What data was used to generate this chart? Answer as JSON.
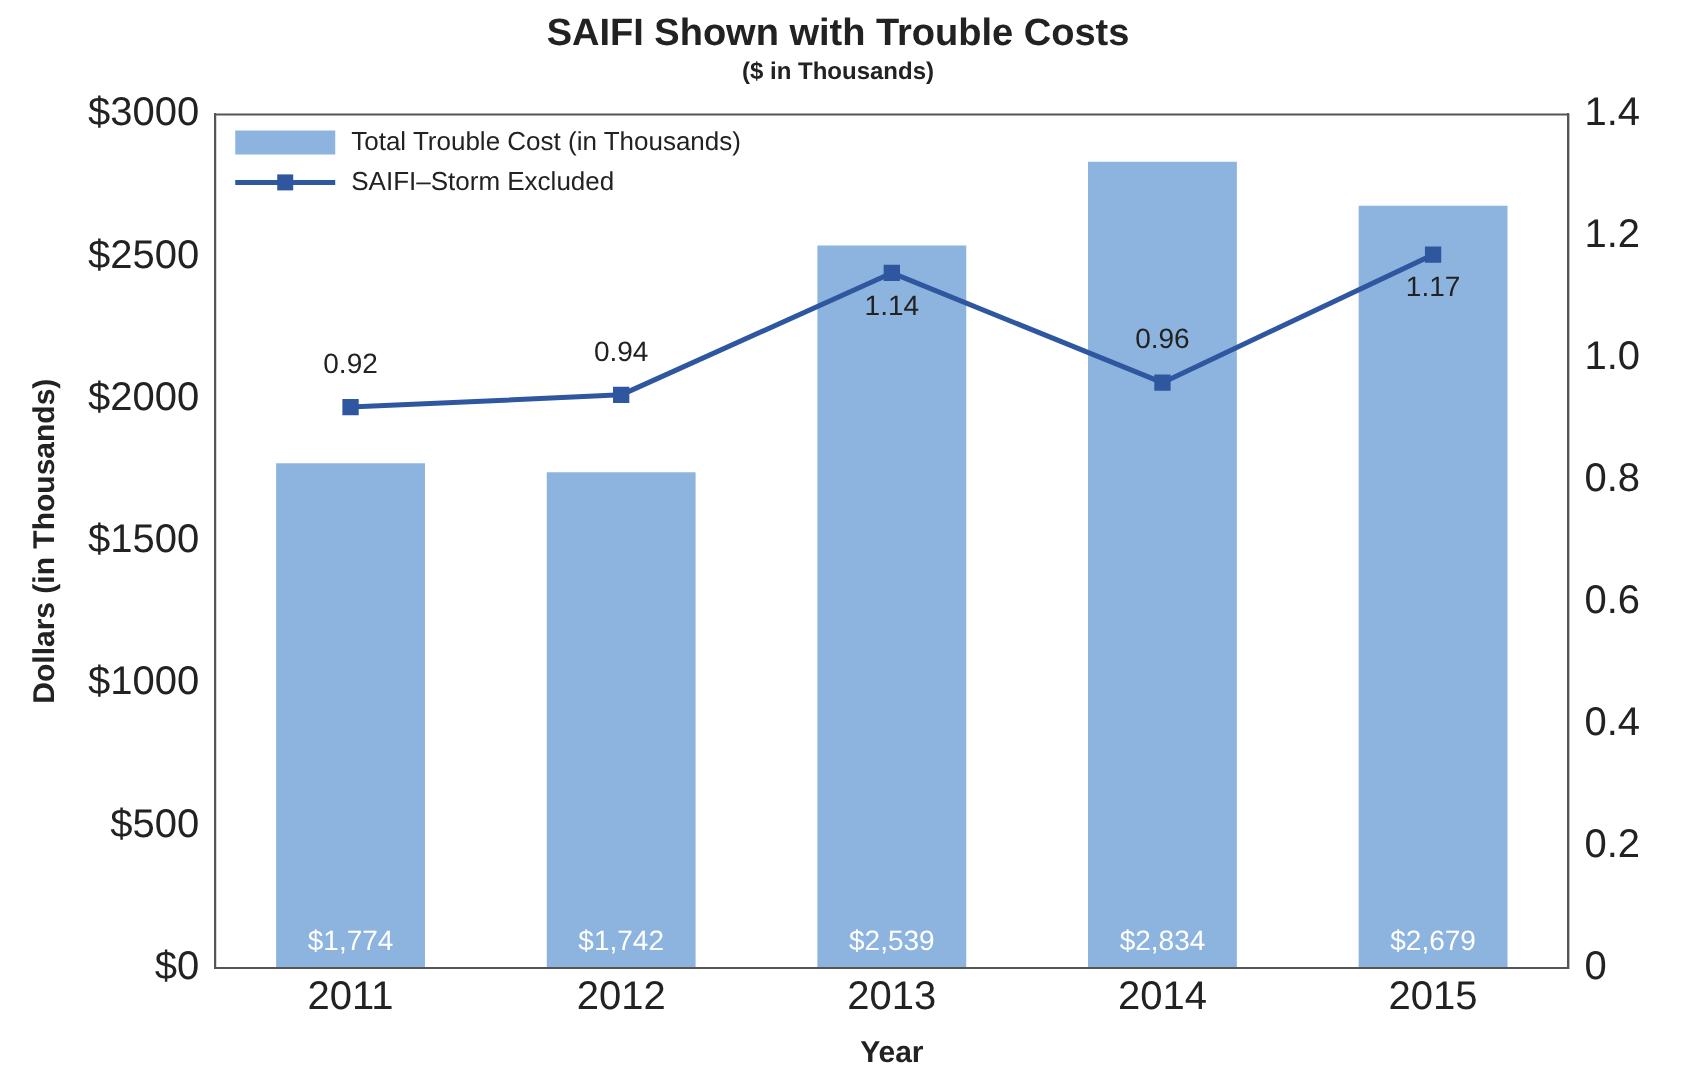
{
  "chart_data": {
    "type": "bar",
    "title": "SAIFI Shown with Trouble Costs",
    "subtitle": "($ in Thousands)",
    "xlabel": "Year",
    "ylabel": "Dollars (in Thousands)",
    "categories": [
      "2011",
      "2012",
      "2013",
      "2014",
      "2015"
    ],
    "series": [
      {
        "name": "Total Trouble Cost (in Thousands)",
        "color": "#8db4de",
        "values": [
          1774,
          1742,
          2539,
          2834,
          2679
        ],
        "value_labels": [
          "$1,774",
          "$1,742",
          "$2,539",
          "$2,834",
          "$2,679"
        ]
      },
      {
        "name": "SAIFI–Storm Excluded",
        "type": "line",
        "axis": "y2",
        "color": "#2e57a0",
        "values": [
          0.92,
          0.94,
          1.14,
          0.96,
          1.17
        ],
        "value_labels": [
          "0.92",
          "0.94",
          "1.14",
          "0.96",
          "1.17"
        ]
      }
    ],
    "ylim": [
      0,
      3000
    ],
    "yticks": [
      {
        "value": 0,
        "label": "$0"
      },
      {
        "value": 500,
        "label": "$500"
      },
      {
        "value": 1000,
        "label": "$1000"
      },
      {
        "value": 1500,
        "label": "$1500"
      },
      {
        "value": 2000,
        "label": "$2000"
      },
      {
        "value": 2500,
        "label": "$2500"
      },
      {
        "value": 3000,
        "label": "$3000"
      }
    ],
    "y2lim": [
      0,
      1.4
    ],
    "y2ticks": [
      0,
      0.2,
      0.4,
      0.6,
      0.8,
      {
        "value": 1,
        "label": "1.0"
      },
      1.2,
      1.4
    ],
    "legend": "top left",
    "grid": false,
    "marker": "square",
    "line_style": "solid"
  }
}
